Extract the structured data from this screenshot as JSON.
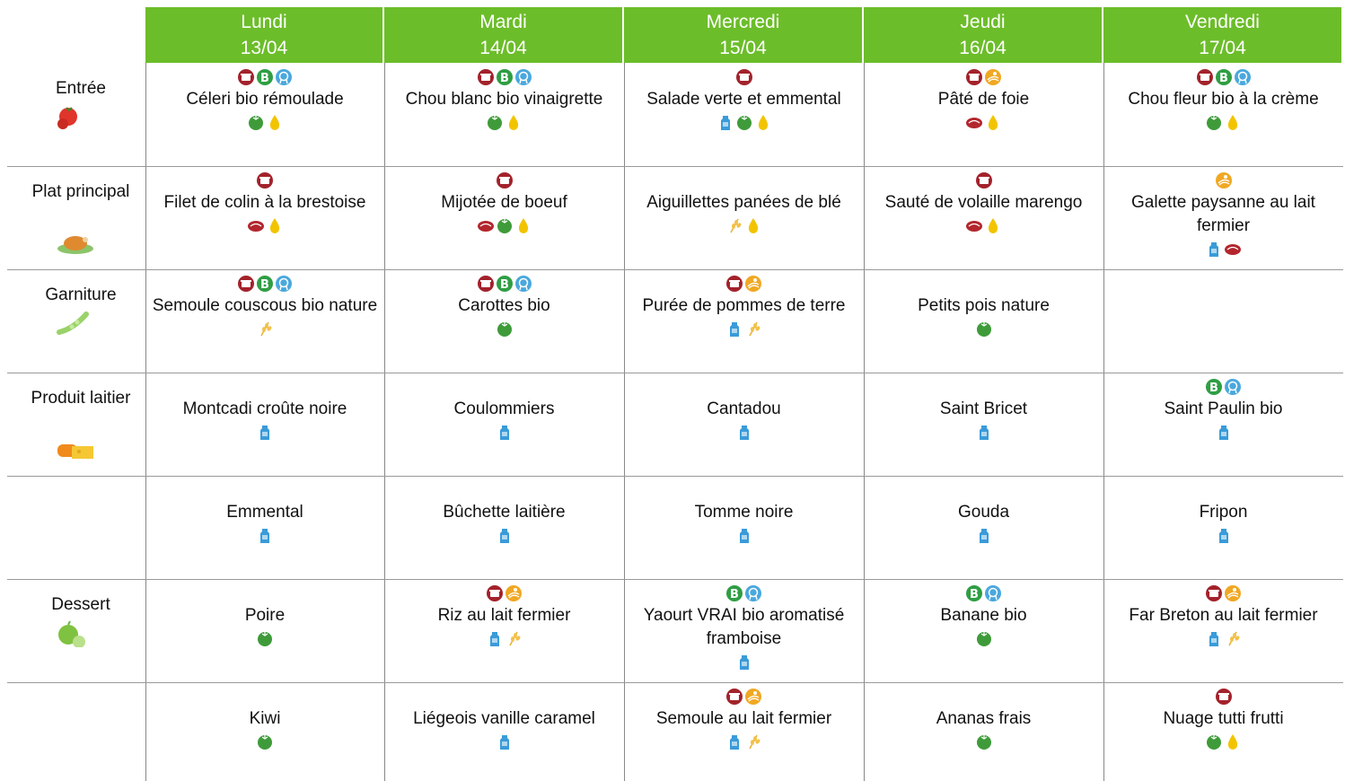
{
  "header": {
    "days": [
      {
        "name": "Lundi",
        "date": "13/04"
      },
      {
        "name": "Mardi",
        "date": "14/04"
      },
      {
        "name": "Mercredi",
        "date": "15/04"
      },
      {
        "name": "Jeudi",
        "date": "16/04"
      },
      {
        "name": "Vendredi",
        "date": "17/04"
      }
    ]
  },
  "table": {
    "rows": [
      {
        "label": "Entrée",
        "cells": [
          "Céleri bio rémoulade",
          "Chou blanc bio vinaigrette",
          "Salade verte et emmental",
          "Pâté de foie",
          "Chou fleur bio à la crème"
        ]
      },
      {
        "label": "Plat principal",
        "cells": [
          "Filet de colin à la brestoise",
          "Mijotée de boeuf",
          "Aiguillettes panées de blé",
          "Sauté de volaille marengo",
          "Galette paysanne au lait fermier"
        ]
      },
      {
        "label": "Garniture",
        "cells": [
          "Semoule couscous bio nature",
          "Carottes bio",
          "Purée de pommes de terre",
          "Petits pois nature",
          null
        ]
      },
      {
        "label": "Produit laitier",
        "cells": [
          "Montcadi croûte noire",
          "Coulommiers",
          "Cantadou",
          "Saint Bricet",
          "Saint Paulin bio"
        ]
      },
      {
        "label": null,
        "cells": [
          "Emmental",
          "Bûchette laitière",
          "Tomme noire",
          "Gouda",
          "Fripon"
        ]
      },
      {
        "label": "Dessert",
        "cells": [
          "Poire",
          "Riz au lait fermier",
          "Yaourt VRAI bio aromatisé framboise",
          "Banane bio",
          "Far Breton au lait fermier"
        ]
      },
      {
        "label": null,
        "cells": [
          "Kiwi",
          "Liégeois vanille caramel",
          "Semoule au lait fermier",
          "Ananas frais",
          "Nuage tutti frutti"
        ]
      }
    ]
  }
}
